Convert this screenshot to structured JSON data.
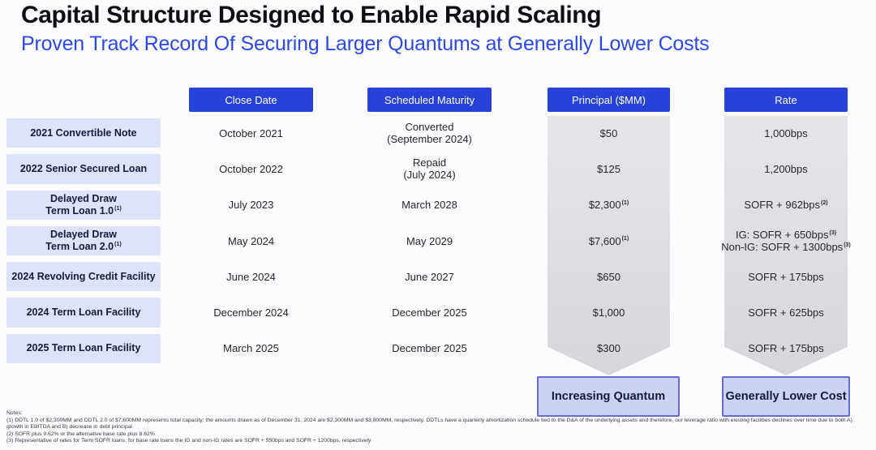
{
  "slide": {
    "title": "Capital Structure Designed to Enable Rapid Scaling",
    "subtitle": "Proven Track Record Of Securing Larger Quantums at Generally Lower Costs"
  },
  "colors": {
    "header_blue": "#2742d8",
    "subtitle_blue": "#2c49e6",
    "row_label_fill": "#dde3f8",
    "arrow_gray": "#dcdce0",
    "callout_fill": "#ccd2f3",
    "callout_border": "#666bd0"
  },
  "table": {
    "headers": {
      "close": "Close Date",
      "maturity": "Scheduled Maturity",
      "principal": "Principal ($MM)",
      "rate": "Rate"
    },
    "rows": [
      {
        "label_line1": "2021 Convertible Note",
        "close": "October 2021",
        "maturity_line1": "Converted",
        "maturity_line2": "(September 2024)",
        "principal": "$50",
        "rate_line1": "1,000bps"
      },
      {
        "label_line1": "2022 Senior Secured Loan",
        "close": "October 2022",
        "maturity_line1": "Repaid",
        "maturity_line2": "(July 2024)",
        "principal": "$125",
        "rate_line1": "1,200bps"
      },
      {
        "label_line1": "Delayed Draw",
        "label_line2": "Term Loan 1.0",
        "label_sup": "(1)",
        "close": "July 2023",
        "maturity_line1": "March 2028",
        "principal": "$2,300",
        "principal_sup": "(1)",
        "rate_line1": "SOFR + 962bps",
        "rate_sup1": "(2)"
      },
      {
        "label_line1": "Delayed Draw",
        "label_line2": "Term Loan 2.0",
        "label_sup": "(1)",
        "close": "May 2024",
        "maturity_line1": "May 2029",
        "principal": "$7,600",
        "principal_sup": "(1)",
        "rate_line1": "IG: SOFR + 650bps",
        "rate_sup1": "(3)",
        "rate_line2": "Non-IG: SOFR + 1300bps",
        "rate_sup2": "(3)"
      },
      {
        "label_line1": "2024 Revolving Credit Facility",
        "close": "June 2024",
        "maturity_line1": "June 2027",
        "principal": "$650",
        "rate_line1": "SOFR + 175bps"
      },
      {
        "label_line1": "2024 Term Loan Facility",
        "close": "December 2024",
        "maturity_line1": "December 2025",
        "principal": "$1,000",
        "rate_line1": "SOFR + 625bps"
      },
      {
        "label_line1": "2025 Term Loan Facility",
        "close": "March 2025",
        "maturity_line1": "December 2025",
        "principal": "$300",
        "rate_line1": "SOFR + 175bps"
      }
    ]
  },
  "callouts": {
    "principal": "Increasing Quantum",
    "rate": "Generally Lower Cost"
  },
  "notes": {
    "heading": "Notes:",
    "line1": "(1) DDTL 1.0 of $2,300MM and DDTL 2.0 of $7,600MM represents total capacity; the amounts drawn as of December 31, 2024 are $2,300MM and $3,800MM, respectively. DDTLs have a quarterly amortization schedule tied to the D&A of the underlying assets and therefore, our leverage ratio with existing facilities declines over time due to both A)",
    "line2": "growth in EBITDA and B) decrease in debt principal",
    "line3": "(2) SOFR plus 9.62% or the alternative base rate plus 8.62%",
    "line4": "(3) Representative of rates for Term SOFR loans; for base rate loans the IG and non-IG rates are SOFR + 550bps and SOFR + 1200bps, respectively"
  }
}
